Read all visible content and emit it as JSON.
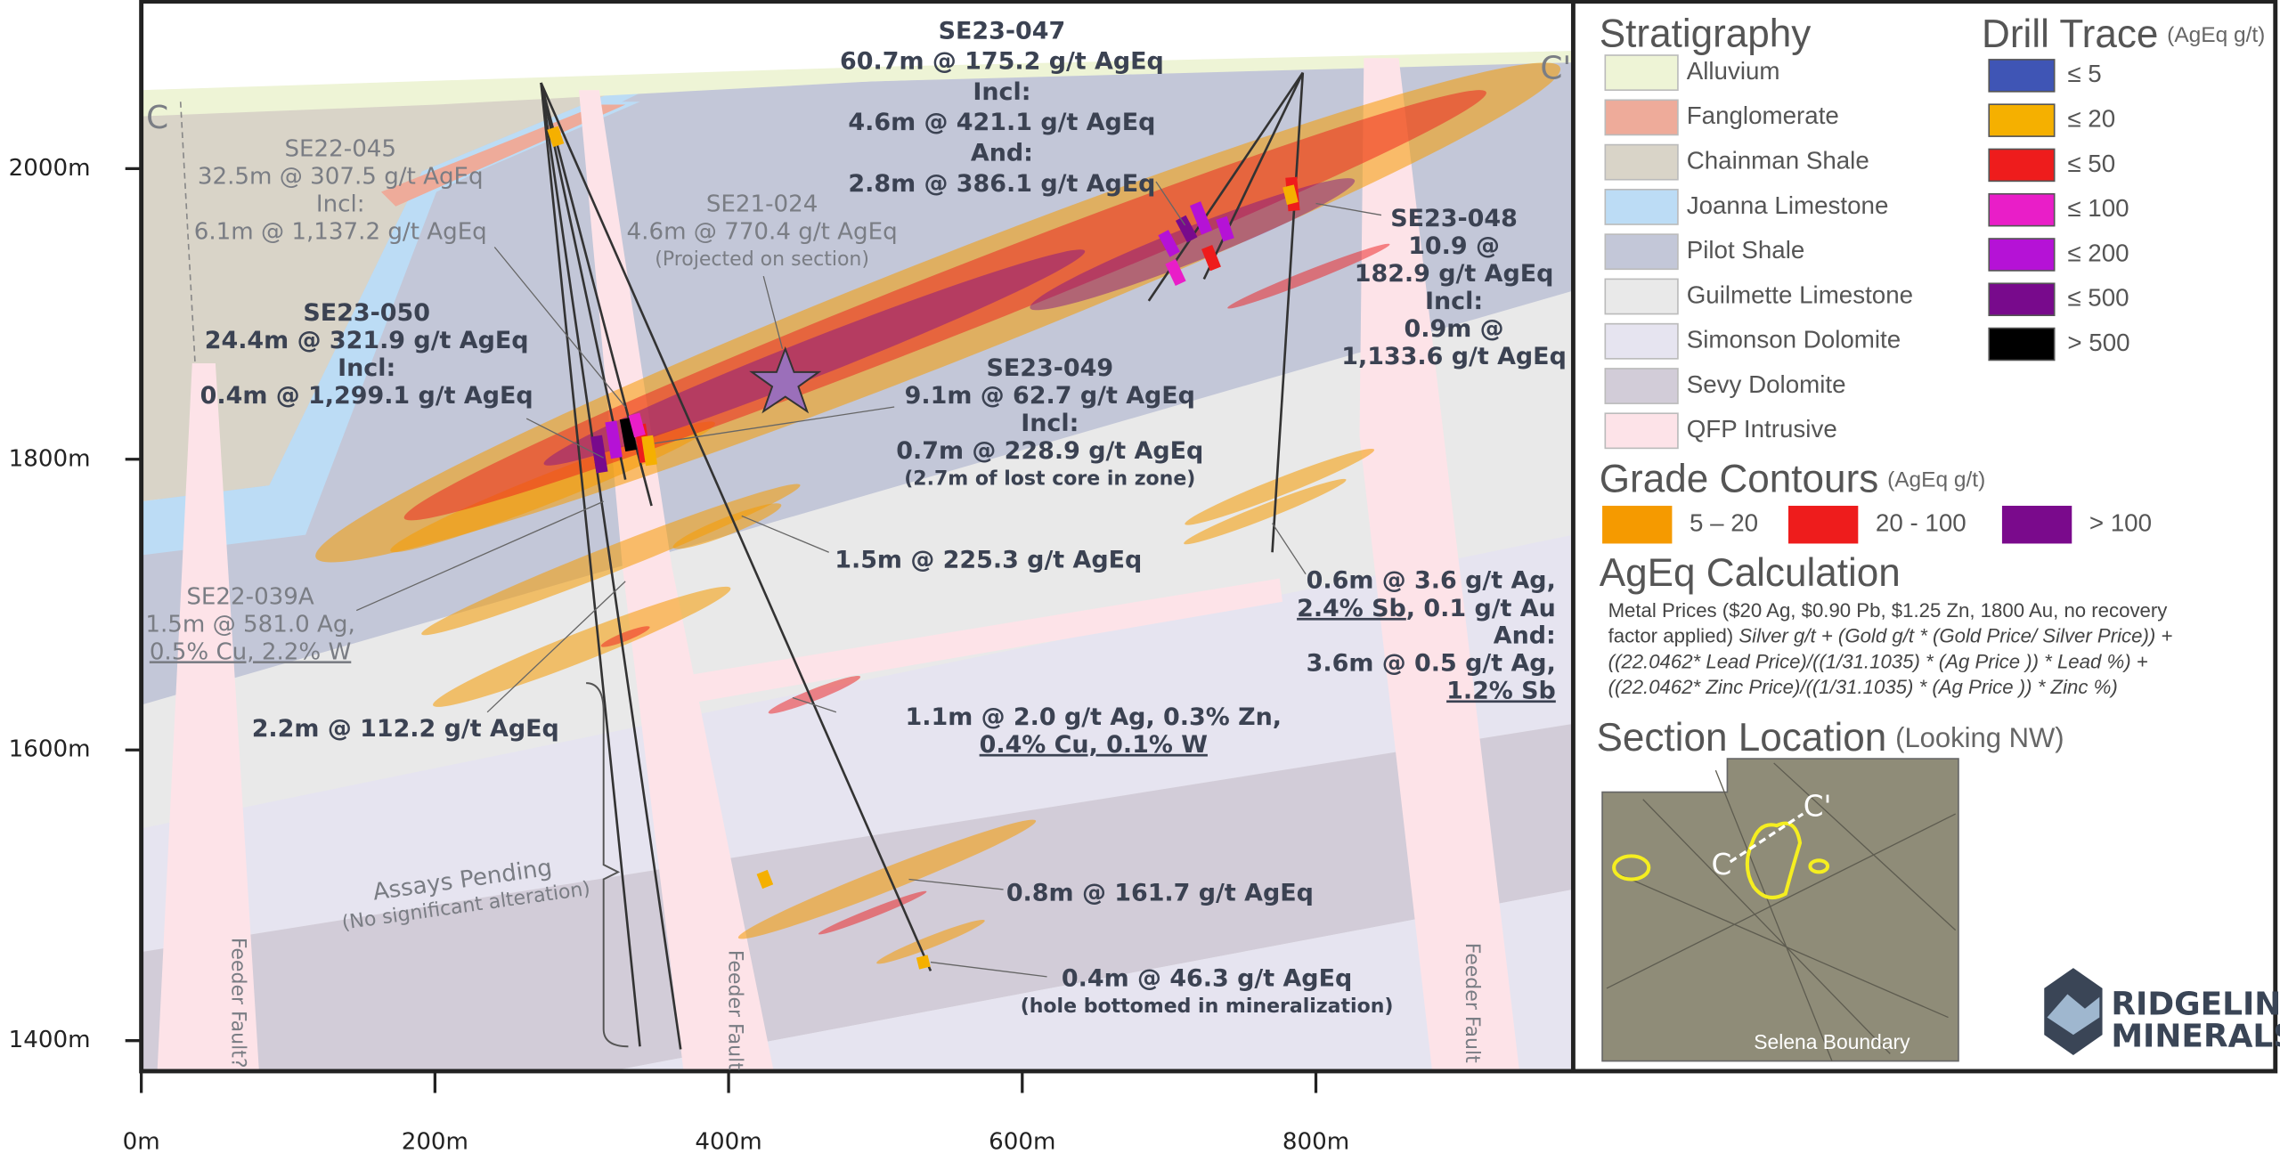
{
  "section": {
    "labels": [
      "C",
      "C'"
    ],
    "y_axis": [
      "2000m",
      "1800m",
      "1600m",
      "1400m"
    ],
    "x_axis": [
      "0m",
      "200m",
      "400m",
      "600m",
      "800m"
    ],
    "feeder_faults": [
      "Feeder Fault?",
      "Feeder Fault",
      "Feeder Fault"
    ]
  },
  "annotations": [
    {
      "lines": [
        "SE23-047",
        "60.7m @ 175.2 g/t AgEq",
        "Incl:",
        "4.6m @ 421.1 g/t AgEq",
        "And:",
        "2.8m @ 386.1 g/t AgEq"
      ]
    },
    {
      "lines": [
        "SE22-045",
        "32.5m @ 307.5 g/t AgEq",
        "Incl:",
        "6.1m @ 1,137.2 g/t AgEq"
      ]
    },
    {
      "lines": [
        "SE21-024",
        "4.6m @ 770.4 g/t AgEq",
        "(Projected on section)"
      ]
    },
    {
      "lines": [
        "SE23-050",
        "24.4m @ 321.9 g/t AgEq",
        "Incl:",
        "0.4m @ 1,299.1 g/t AgEq"
      ]
    },
    {
      "lines": [
        "SE23-049",
        "9.1m @ 62.7 g/t AgEq",
        "Incl:",
        "0.7m @ 228.9 g/t AgEq",
        "(2.7m of lost core in zone)"
      ]
    },
    {
      "lines": [
        "SE23-048",
        "10.9 @",
        "182.9 g/t AgEq",
        "Incl:",
        "0.9m @",
        "1,133.6 g/t AgEq"
      ]
    },
    {
      "lines": [
        "1.5m @ 225.3 g/t AgEq"
      ]
    },
    {
      "lines": [
        "SE22-039A",
        "1.5m @ 581.0 Ag,",
        "0.5% Cu, 2.2% W"
      ]
    },
    {
      "lines": [
        "0.6m @ 3.6 g/t Ag,",
        [
          "2.4% Sb",
          ", 0.1 g/t Au"
        ],
        "And:",
        "3.6m @ 0.5 g/t Ag,",
        "1.2% Sb"
      ]
    },
    {
      "lines": [
        "2.2m @ 112.2 g/t AgEq"
      ]
    },
    {
      "lines": [
        "1.1m @ 2.0 g/t Ag, 0.3% Zn,",
        "0.4% Cu, 0.1% W"
      ]
    },
    {
      "lines": [
        "0.8m @ 161.7 g/t AgEq"
      ]
    },
    {
      "lines": [
        "0.4m @ 46.3 g/t AgEq",
        "(hole bottomed in mineralization)"
      ]
    },
    {
      "lines": [
        "Assays Pending",
        "(No significant alteration)"
      ]
    }
  ],
  "legend": {
    "stratigraphy": {
      "title": "Stratigraphy",
      "items": [
        {
          "label": "Alluvium",
          "color": "#eef4d6"
        },
        {
          "label": "Fanglomerate",
          "color": "#eeab9a"
        },
        {
          "label": "Chainman Shale",
          "color": "#d9d4c8"
        },
        {
          "label": "Joanna Limestone",
          "color": "#bcdcf5"
        },
        {
          "label": "Pilot Shale",
          "color": "#c3c7d8"
        },
        {
          "label": "Guilmette Limestone",
          "color": "#e9e9e9"
        },
        {
          "label": "Simonson Dolomite",
          "color": "#e6e4f0"
        },
        {
          "label": "Sevy Dolomite",
          "color": "#d2ccd8"
        },
        {
          "label": "QFP Intrusive",
          "color": "#fde3e8"
        }
      ]
    },
    "drill_trace": {
      "title": "Drill Trace",
      "unit": "(AgEq g/t)",
      "items": [
        {
          "label": "≤ 5",
          "color": "#3f55b5"
        },
        {
          "label": "≤ 20",
          "color": "#f5b000"
        },
        {
          "label": "≤ 50",
          "color": "#ee1c1c"
        },
        {
          "label": "≤ 100",
          "color": "#e91ec8"
        },
        {
          "label": "≤ 200",
          "color": "#b512d6"
        },
        {
          "label": "≤ 500",
          "color": "#780a8c"
        },
        {
          "label": "> 500",
          "color": "#000000"
        }
      ]
    },
    "grade_contours": {
      "title": "Grade Contours",
      "unit": "(AgEq g/t)",
      "items": [
        {
          "label": "5 – 20",
          "color": "#f59a00"
        },
        {
          "label": "20 - 100",
          "color": "#ee1c1c"
        },
        {
          "label": "> 100",
          "color": "#7a0a8c"
        }
      ]
    },
    "ageq_calculation": {
      "title": "AgEq Calculation",
      "lines": [
        [
          "Metal Prices ($20 Ag, $0.90 Pb, $1.25 Zn, 1800 Au, no recovery"
        ],
        [
          "factor applied) ",
          "Silver g/t + (Gold g/t * (Gold Price/ Silver Price)) +"
        ],
        [
          "((22.0462* Lead Price)/((1/31.1035) * (Ag Price )) * Lead %) +"
        ],
        [
          "((22.0462* Zinc Price)/((1/31.1035) * (Ag Price )) * Zinc %)"
        ]
      ]
    },
    "section_location": {
      "title": "Section Location",
      "subtitle": "(Looking NW)",
      "map_labels": [
        "C",
        "C'",
        "Selena Boundary"
      ]
    }
  },
  "logo": [
    "RIDGELINE",
    "MINERALS"
  ]
}
